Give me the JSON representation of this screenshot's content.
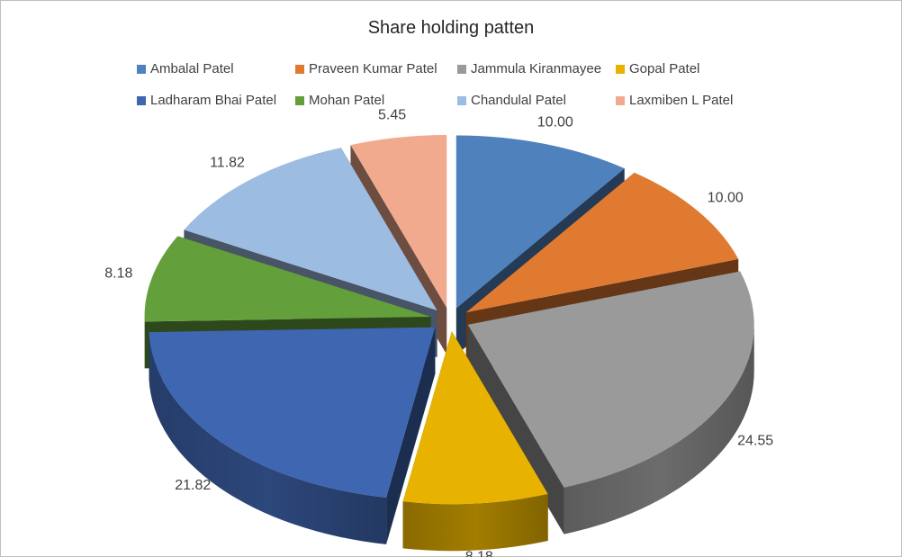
{
  "chart_data": {
    "type": "pie",
    "title": "Share holding patten",
    "legend_position": "top",
    "categories": [
      "Ambalal Patel",
      "Praveen Kumar Patel",
      "Jammula Kiranmayee",
      "Gopal Patel",
      "Ladharam Bhai Patel",
      "Mohan Patel",
      "Chandulal Patel",
      "Laxmiben L Patel"
    ],
    "values": [
      10.0,
      10.0,
      24.55,
      8.18,
      21.82,
      8.18,
      11.82,
      5.45
    ],
    "value_labels": [
      "10.00",
      "10.00",
      "24.55",
      "8.18",
      "21.82",
      "8.18",
      "11.82",
      "5.45"
    ],
    "colors": [
      "#4f81bd",
      "#e07a30",
      "#9a9a9a",
      "#e8b300",
      "#3f66b0",
      "#63a03c",
      "#9dbce2",
      "#f2aa8f"
    ]
  }
}
